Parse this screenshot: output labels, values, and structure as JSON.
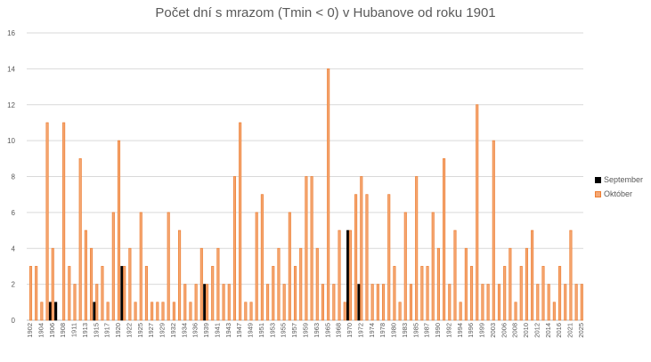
{
  "chart_data": {
    "type": "bar",
    "title": "Počet dní s mrazom (Tmin < 0) v Hubanove od roku 1901",
    "xlabel": "",
    "ylabel": "",
    "ylim": [
      0,
      16
    ],
    "yticks": [
      0,
      2,
      4,
      6,
      8,
      10,
      12,
      14,
      16
    ],
    "grid": true,
    "legend_position": "right",
    "categories": [
      1902,
      1903,
      1904,
      1905,
      1906,
      1907,
      1908,
      1909,
      1911,
      1912,
      1913,
      1914,
      1915,
      1916,
      1917,
      1919,
      1920,
      1921,
      1922,
      1923,
      1925,
      1926,
      1927,
      1928,
      1929,
      1931,
      1932,
      1933,
      1934,
      1935,
      1936,
      1938,
      1939,
      1940,
      1941,
      1942,
      1943,
      1946,
      1947,
      1948,
      1949,
      1950,
      1951,
      1952,
      1953,
      1954,
      1955,
      1956,
      1957,
      1958,
      1959,
      1962,
      1963,
      1964,
      1965,
      1967,
      1968,
      1969,
      1970,
      1971,
      1972,
      1973,
      1974,
      1976,
      1978,
      1979,
      1980,
      1982,
      1983,
      1984,
      1985,
      1986,
      1987,
      1989,
      1990,
      1991,
      1992,
      1993,
      1994,
      1995,
      1996,
      1998,
      1999,
      2002,
      2003,
      2005,
      2006,
      2007,
      2008,
      2009,
      2010,
      2011,
      2012,
      2013,
      2014,
      2015,
      2016,
      2020,
      2021,
      2023,
      2025
    ],
    "series": [
      {
        "name": "September",
        "color": "#000000",
        "border": "#000000",
        "values": [
          0,
          0,
          0,
          0,
          1,
          1,
          0,
          0,
          0,
          0,
          0,
          0,
          1,
          0,
          0,
          0,
          0,
          3,
          0,
          0,
          0,
          0,
          0,
          0,
          0,
          0,
          0,
          0,
          0,
          0,
          0,
          0,
          2,
          0,
          0,
          0,
          0,
          0,
          0,
          0,
          0,
          0,
          0,
          0,
          0,
          0,
          0,
          0,
          0,
          0,
          0,
          0,
          0,
          0,
          0,
          0,
          0,
          0,
          5,
          0,
          2,
          0,
          0,
          0,
          0,
          0,
          0,
          0,
          0,
          0,
          0,
          0,
          0,
          0,
          0,
          0,
          0,
          0,
          0,
          0,
          0,
          0,
          0,
          0,
          0,
          0,
          0,
          0,
          0,
          0,
          0,
          0,
          0,
          0,
          0,
          0,
          0,
          0,
          0,
          0,
          0
        ]
      },
      {
        "name": "Október",
        "color": "#F5A874",
        "border": "#ED7D31",
        "values": [
          3,
          3,
          1,
          11,
          4,
          0,
          11,
          3,
          2,
          9,
          5,
          4,
          2,
          3,
          1,
          6,
          10,
          3,
          4,
          1,
          6,
          3,
          1,
          1,
          1,
          6,
          1,
          5,
          2,
          1,
          2,
          4,
          2,
          3,
          4,
          2,
          2,
          8,
          11,
          1,
          1,
          6,
          7,
          2,
          3,
          4,
          2,
          6,
          3,
          4,
          8,
          8,
          4,
          2,
          14,
          2,
          5,
          1,
          5,
          7,
          8,
          7,
          2,
          2,
          2,
          7,
          3,
          1,
          6,
          2,
          8,
          3,
          3,
          6,
          4,
          9,
          2,
          5,
          1,
          4,
          3,
          12,
          2,
          2,
          10,
          2,
          3,
          4,
          1,
          3,
          4,
          5,
          2,
          3,
          2,
          1,
          3,
          2,
          5,
          2,
          2
        ]
      }
    ]
  }
}
